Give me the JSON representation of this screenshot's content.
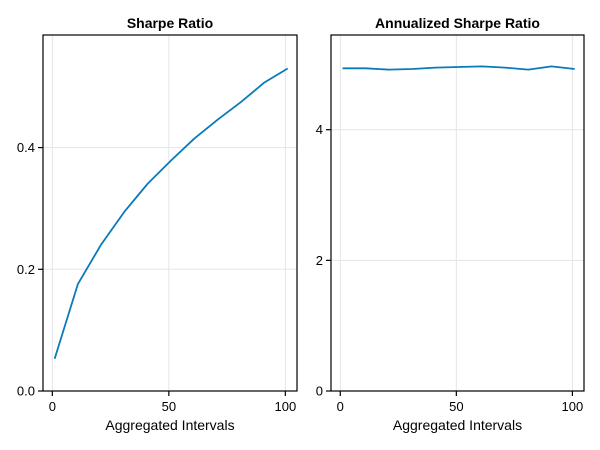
{
  "colors": {
    "series": "#0a7ab8",
    "grid": "#e5e5e5",
    "axis": "#000000"
  },
  "chart_data": [
    {
      "type": "line",
      "title": "Sharpe Ratio",
      "xlabel": "Aggregated Intervals",
      "ylabel": "",
      "xlim": [
        -4,
        105
      ],
      "ylim": [
        0,
        0.585
      ],
      "xticks": [
        0,
        50,
        100
      ],
      "xtick_labels": [
        "0",
        "50",
        "100"
      ],
      "yticks": [
        0,
        0.2,
        0.4
      ],
      "ytick_labels": [
        "0.0",
        "0.2",
        "0.4"
      ],
      "grid": true,
      "series": [
        {
          "name": "Sharpe Ratio",
          "x": [
            1,
            11,
            21,
            31,
            41,
            51,
            61,
            71,
            81,
            91,
            101
          ],
          "y": [
            0.053,
            0.176,
            0.241,
            0.295,
            0.341,
            0.379,
            0.415,
            0.446,
            0.475,
            0.507,
            0.53
          ]
        }
      ]
    },
    {
      "type": "line",
      "title": "Annualized Sharpe Ratio",
      "xlabel": "Aggregated Intervals",
      "ylabel": "",
      "xlim": [
        -4,
        105
      ],
      "ylim": [
        0,
        5.45
      ],
      "xticks": [
        0,
        50,
        100
      ],
      "xtick_labels": [
        "0",
        "50",
        "100"
      ],
      "yticks": [
        0,
        2,
        4
      ],
      "ytick_labels": [
        "0",
        "2",
        "4"
      ],
      "grid": true,
      "series": [
        {
          "name": "Annualized Sharpe Ratio",
          "x": [
            1,
            11,
            21,
            31,
            41,
            51,
            61,
            71,
            81,
            91,
            101
          ],
          "y": [
            4.94,
            4.94,
            4.92,
            4.93,
            4.95,
            4.96,
            4.97,
            4.95,
            4.92,
            4.97,
            4.93
          ]
        }
      ]
    }
  ]
}
